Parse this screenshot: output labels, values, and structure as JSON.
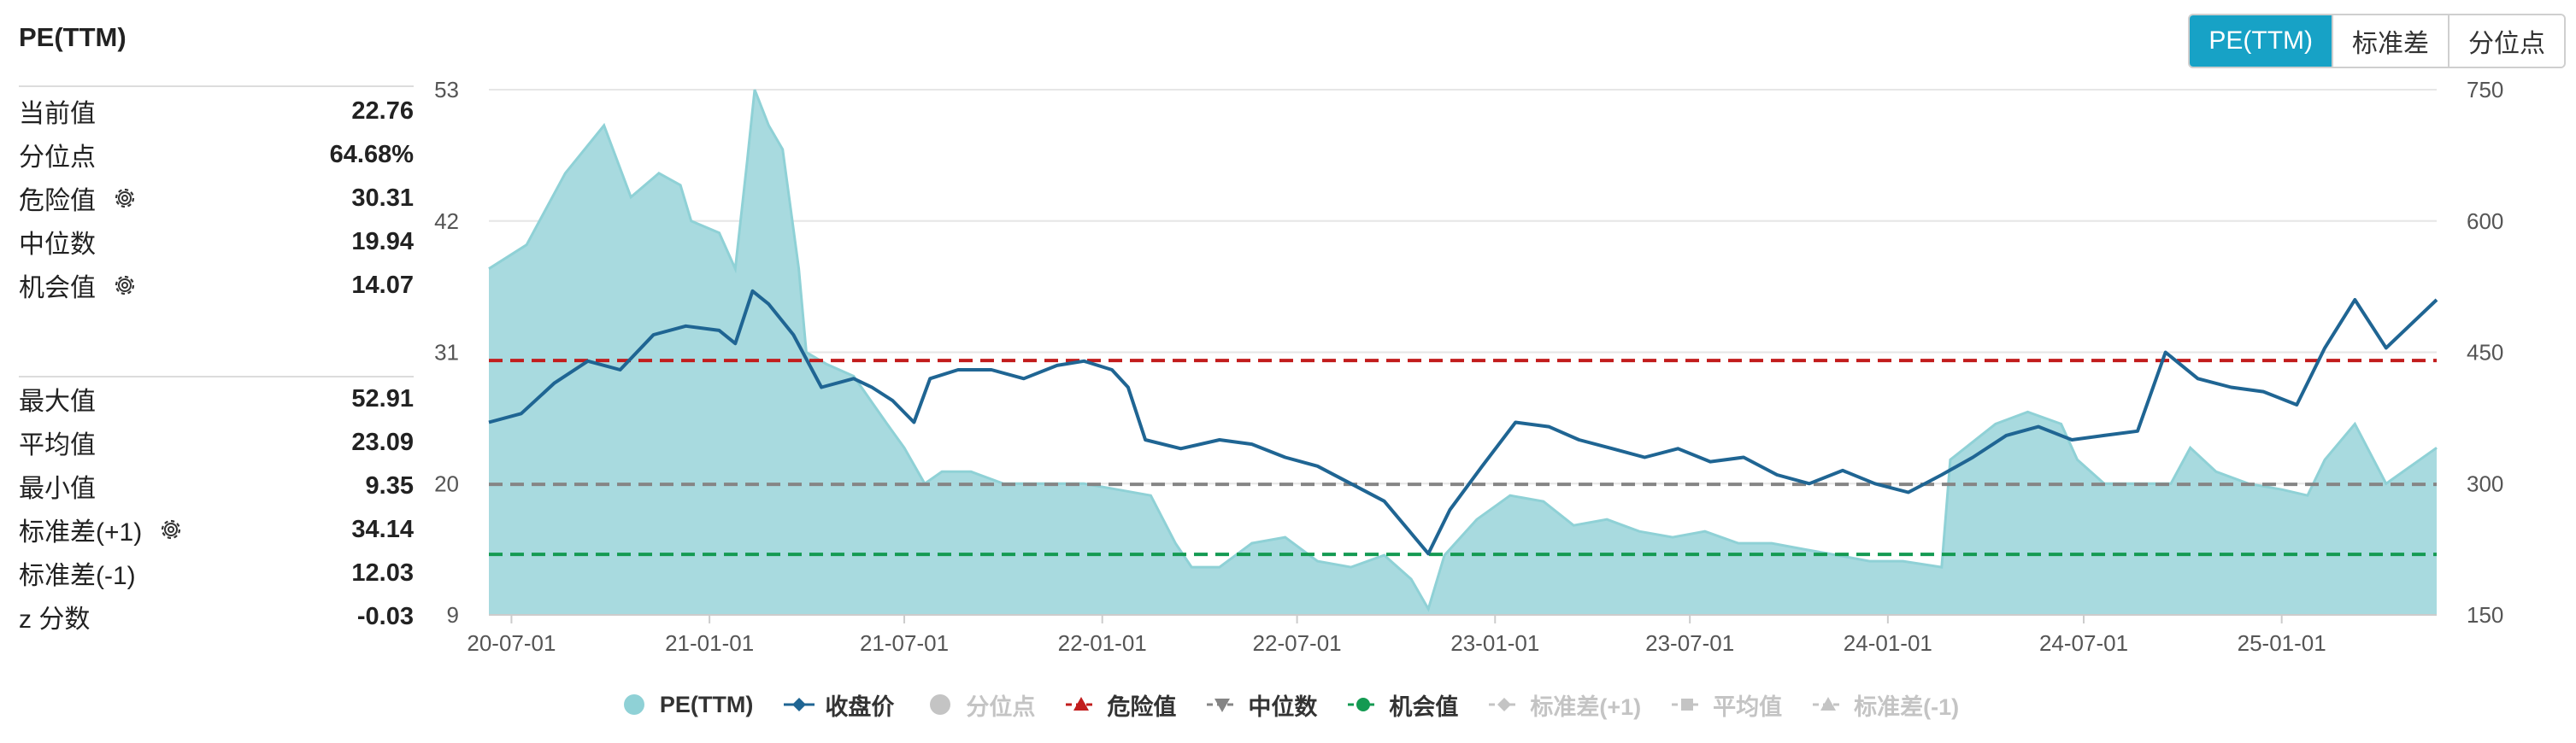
{
  "panel": {
    "title": "PE(TTM)",
    "current": {
      "label": "当前值",
      "value": "22.76"
    },
    "percentile": {
      "label": "分位点",
      "value": "64.68%"
    },
    "danger": {
      "label": "危险值",
      "value": "30.31"
    },
    "median": {
      "label": "中位数",
      "value": "19.94"
    },
    "opportunity": {
      "label": "机会值",
      "value": "14.07"
    },
    "max": {
      "label": "最大值",
      "value": "52.91"
    },
    "mean": {
      "label": "平均值",
      "value": "23.09"
    },
    "min": {
      "label": "最小值",
      "value": "9.35"
    },
    "std_plus": {
      "label": "标准差(+1)",
      "value": "34.14"
    },
    "std_minus": {
      "label": "标准差(-1)",
      "value": "12.03"
    },
    "zscore": {
      "label": "z 分数",
      "value": "-0.03"
    }
  },
  "toggle": {
    "pe": "PE(TTM)",
    "std": "标准差",
    "pct": "分位点",
    "active": "pe"
  },
  "colors": {
    "pe_fill": "#a8dadf",
    "pe_line": "#8fd1d6",
    "price": "#1f6593",
    "danger": "#c21d1d",
    "median": "#858585",
    "opportunity": "#149a52",
    "inactive": "#c4c4c4"
  },
  "chart_data": {
    "type": "area",
    "x_ticks": [
      "20-07-01",
      "21-01-01",
      "21-07-01",
      "22-01-01",
      "22-07-01",
      "23-01-01",
      "23-07-01",
      "24-01-01",
      "24-07-01",
      "25-01-01"
    ],
    "x_range": [
      "2020-06-10",
      "2025-05-25"
    ],
    "y_left": {
      "ticks": [
        "9",
        "20",
        "31",
        "42",
        "53"
      ],
      "range": [
        9,
        53
      ]
    },
    "y_right": {
      "ticks": [
        "150",
        "300",
        "450",
        "600",
        "750"
      ],
      "range": [
        150,
        750
      ]
    },
    "reference_lines": {
      "danger": 30.31,
      "median": 19.94,
      "opportunity": 14.07
    },
    "series": [
      {
        "name": "PE(TTM)",
        "axis": "left",
        "points": [
          [
            "2020-06-10",
            38
          ],
          [
            "2020-07-15",
            40
          ],
          [
            "2020-08-20",
            46
          ],
          [
            "2020-09-25",
            50
          ],
          [
            "2020-10-20",
            44
          ],
          [
            "2020-11-15",
            46
          ],
          [
            "2020-12-05",
            45
          ],
          [
            "2020-12-15",
            42
          ],
          [
            "2021-01-10",
            41
          ],
          [
            "2021-01-25",
            38
          ],
          [
            "2021-02-05",
            47
          ],
          [
            "2021-02-12",
            53
          ],
          [
            "2021-02-25",
            50
          ],
          [
            "2021-03-10",
            48
          ],
          [
            "2021-03-25",
            38
          ],
          [
            "2021-04-01",
            31
          ],
          [
            "2021-04-20",
            30
          ],
          [
            "2021-05-15",
            29
          ],
          [
            "2021-06-15",
            25
          ],
          [
            "2021-07-01",
            23
          ],
          [
            "2021-07-20",
            20
          ],
          [
            "2021-08-05",
            21
          ],
          [
            "2021-09-01",
            21
          ],
          [
            "2021-10-01",
            20
          ],
          [
            "2021-11-01",
            20
          ],
          [
            "2021-12-15",
            20
          ],
          [
            "2022-01-15",
            19.5
          ],
          [
            "2022-02-15",
            19
          ],
          [
            "2022-03-10",
            15
          ],
          [
            "2022-03-25",
            13
          ],
          [
            "2022-04-20",
            13
          ],
          [
            "2022-05-20",
            15
          ],
          [
            "2022-06-20",
            15.5
          ],
          [
            "2022-07-20",
            13.5
          ],
          [
            "2022-08-20",
            13
          ],
          [
            "2022-09-20",
            14
          ],
          [
            "2022-10-15",
            12
          ],
          [
            "2022-10-31",
            9.5
          ],
          [
            "2022-11-15",
            14
          ],
          [
            "2022-12-15",
            17
          ],
          [
            "2023-01-15",
            19
          ],
          [
            "2023-02-15",
            18.5
          ],
          [
            "2023-03-15",
            16.5
          ],
          [
            "2023-04-15",
            17
          ],
          [
            "2023-05-15",
            16
          ],
          [
            "2023-06-15",
            15.5
          ],
          [
            "2023-07-15",
            16
          ],
          [
            "2023-08-15",
            15
          ],
          [
            "2023-09-15",
            15
          ],
          [
            "2023-10-15",
            14.5
          ],
          [
            "2023-11-15",
            14
          ],
          [
            "2023-12-15",
            13.5
          ],
          [
            "2024-01-15",
            13.5
          ],
          [
            "2024-02-20",
            13
          ],
          [
            "2024-02-28",
            22
          ],
          [
            "2024-04-10",
            25
          ],
          [
            "2024-05-10",
            26
          ],
          [
            "2024-06-10",
            25
          ],
          [
            "2024-06-25",
            22
          ],
          [
            "2024-07-20",
            20
          ],
          [
            "2024-08-20",
            20
          ],
          [
            "2024-09-20",
            20
          ],
          [
            "2024-10-08",
            23
          ],
          [
            "2024-11-01",
            21
          ],
          [
            "2024-12-01",
            20
          ],
          [
            "2025-01-01",
            19.5
          ],
          [
            "2025-01-25",
            19
          ],
          [
            "2025-02-10",
            22
          ],
          [
            "2025-03-10",
            25
          ],
          [
            "2025-04-08",
            20
          ],
          [
            "2025-05-25",
            23
          ]
        ]
      },
      {
        "name": "收盘价",
        "axis": "right",
        "points": [
          [
            "2020-06-10",
            370
          ],
          [
            "2020-07-10",
            380
          ],
          [
            "2020-08-10",
            415
          ],
          [
            "2020-09-10",
            440
          ],
          [
            "2020-10-10",
            430
          ],
          [
            "2020-11-10",
            470
          ],
          [
            "2020-12-10",
            480
          ],
          [
            "2021-01-10",
            475
          ],
          [
            "2021-01-25",
            460
          ],
          [
            "2021-02-10",
            520
          ],
          [
            "2021-02-25",
            505
          ],
          [
            "2021-03-20",
            470
          ],
          [
            "2021-04-15",
            410
          ],
          [
            "2021-05-15",
            420
          ],
          [
            "2021-06-01",
            410
          ],
          [
            "2021-06-20",
            395
          ],
          [
            "2021-07-10",
            370
          ],
          [
            "2021-07-25",
            420
          ],
          [
            "2021-08-20",
            430
          ],
          [
            "2021-09-20",
            430
          ],
          [
            "2021-10-20",
            420
          ],
          [
            "2021-11-20",
            435
          ],
          [
            "2021-12-15",
            440
          ],
          [
            "2022-01-10",
            430
          ],
          [
            "2022-01-25",
            410
          ],
          [
            "2022-02-10",
            350
          ],
          [
            "2022-03-15",
            340
          ],
          [
            "2022-04-20",
            350
          ],
          [
            "2022-05-20",
            345
          ],
          [
            "2022-06-20",
            330
          ],
          [
            "2022-07-20",
            320
          ],
          [
            "2022-08-20",
            300
          ],
          [
            "2022-09-20",
            280
          ],
          [
            "2022-10-31",
            220
          ],
          [
            "2022-11-20",
            270
          ],
          [
            "2022-12-20",
            320
          ],
          [
            "2023-01-20",
            370
          ],
          [
            "2023-02-20",
            365
          ],
          [
            "2023-03-20",
            350
          ],
          [
            "2023-04-20",
            340
          ],
          [
            "2023-05-20",
            330
          ],
          [
            "2023-06-20",
            340
          ],
          [
            "2023-07-20",
            325
          ],
          [
            "2023-08-20",
            330
          ],
          [
            "2023-09-20",
            310
          ],
          [
            "2023-10-20",
            300
          ],
          [
            "2023-11-20",
            315
          ],
          [
            "2023-12-20",
            300
          ],
          [
            "2024-01-20",
            290
          ],
          [
            "2024-02-20",
            310
          ],
          [
            "2024-03-20",
            330
          ],
          [
            "2024-04-20",
            355
          ],
          [
            "2024-05-20",
            365
          ],
          [
            "2024-06-20",
            350
          ],
          [
            "2024-07-20",
            355
          ],
          [
            "2024-08-20",
            360
          ],
          [
            "2024-09-15",
            450
          ],
          [
            "2024-10-15",
            420
          ],
          [
            "2024-11-15",
            410
          ],
          [
            "2024-12-15",
            405
          ],
          [
            "2025-01-15",
            390
          ],
          [
            "2025-02-10",
            455
          ],
          [
            "2025-03-10",
            510
          ],
          [
            "2025-04-08",
            455
          ],
          [
            "2025-05-25",
            510
          ]
        ]
      },
      {
        "name": "分位点"
      },
      {
        "name": "危险值"
      },
      {
        "name": "中位数"
      },
      {
        "name": "机会值"
      },
      {
        "name": "标准差(+1)"
      },
      {
        "name": "平均值"
      },
      {
        "name": "标准差(-1)"
      }
    ],
    "legend_position": "bottom",
    "grid": "horizontal"
  },
  "legend": [
    {
      "label": "PE(TTM)",
      "symbol": "circle",
      "color": "#8fd1d6",
      "active": true
    },
    {
      "label": "收盘价",
      "symbol": "diamond",
      "color": "#1f6593",
      "active": true
    },
    {
      "label": "分位点",
      "symbol": "circle",
      "color": "#c4c4c4",
      "active": false
    },
    {
      "label": "危险值",
      "symbol": "triangle-up",
      "color": "#c21d1d",
      "active": true
    },
    {
      "label": "中位数",
      "symbol": "triangle-down",
      "color": "#858585",
      "active": true
    },
    {
      "label": "机会值",
      "symbol": "circle-small",
      "color": "#149a52",
      "active": true
    },
    {
      "label": "标准差(+1)",
      "symbol": "diamond",
      "color": "#c4c4c4",
      "active": false
    },
    {
      "label": "平均值",
      "symbol": "square",
      "color": "#c4c4c4",
      "active": false
    },
    {
      "label": "标准差(-1)",
      "symbol": "triangle-up",
      "color": "#c4c4c4",
      "active": false
    }
  ]
}
